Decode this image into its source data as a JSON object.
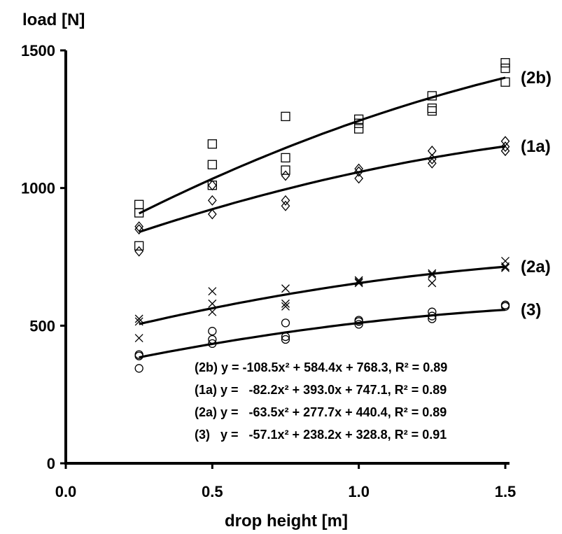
{
  "chart_data": {
    "type": "scatter",
    "ylabel": "load [N]",
    "xlabel": "drop height [m]",
    "xlim": [
      0,
      1.5
    ],
    "ylim": [
      0,
      1500
    ],
    "x_ticks": [
      "0.0",
      "0.5",
      "1.0",
      "1.5"
    ],
    "x_tick_values": [
      0,
      0.5,
      1.0,
      1.5
    ],
    "y_ticks": [
      "0",
      "500",
      "1000",
      "1500"
    ],
    "y_tick_values": [
      0,
      500,
      1000,
      1500
    ],
    "grid": false,
    "series": [
      {
        "name": "(2b)",
        "marker": "square",
        "fit": [
          -108.5,
          584.4,
          768.3
        ],
        "points": [
          [
            0.25,
            940
          ],
          [
            0.25,
            910
          ],
          [
            0.25,
            790
          ],
          [
            0.5,
            1160
          ],
          [
            0.5,
            1085
          ],
          [
            0.5,
            1010
          ],
          [
            0.75,
            1260
          ],
          [
            0.75,
            1110
          ],
          [
            0.75,
            1065
          ],
          [
            1.0,
            1250
          ],
          [
            1.0,
            1235
          ],
          [
            1.0,
            1215
          ],
          [
            1.25,
            1335
          ],
          [
            1.25,
            1290
          ],
          [
            1.25,
            1280
          ],
          [
            1.5,
            1455
          ],
          [
            1.5,
            1435
          ],
          [
            1.5,
            1385
          ]
        ]
      },
      {
        "name": "(1a)",
        "marker": "diamond",
        "fit": [
          -82.2,
          393.0,
          747.1
        ],
        "points": [
          [
            0.25,
            860
          ],
          [
            0.25,
            850
          ],
          [
            0.25,
            770
          ],
          [
            0.5,
            1010
          ],
          [
            0.5,
            955
          ],
          [
            0.5,
            905
          ],
          [
            0.75,
            1045
          ],
          [
            0.75,
            955
          ],
          [
            0.75,
            935
          ],
          [
            1.0,
            1070
          ],
          [
            1.0,
            1060
          ],
          [
            1.0,
            1035
          ],
          [
            1.25,
            1135
          ],
          [
            1.25,
            1105
          ],
          [
            1.25,
            1090
          ],
          [
            1.5,
            1170
          ],
          [
            1.5,
            1150
          ],
          [
            1.5,
            1135
          ]
        ]
      },
      {
        "name": "(2a)",
        "marker": "cross",
        "fit": [
          -63.5,
          277.7,
          440.4
        ],
        "points": [
          [
            0.25,
            525
          ],
          [
            0.25,
            515
          ],
          [
            0.25,
            455
          ],
          [
            0.5,
            625
          ],
          [
            0.5,
            580
          ],
          [
            0.5,
            550
          ],
          [
            0.75,
            635
          ],
          [
            0.75,
            580
          ],
          [
            0.75,
            570
          ],
          [
            1.0,
            665
          ],
          [
            1.0,
            660
          ],
          [
            1.0,
            655
          ],
          [
            1.25,
            690
          ],
          [
            1.25,
            685
          ],
          [
            1.25,
            655
          ],
          [
            1.5,
            735
          ],
          [
            1.5,
            715
          ],
          [
            1.5,
            710
          ]
        ]
      },
      {
        "name": "(3)",
        "marker": "circle",
        "fit": [
          -57.1,
          238.2,
          328.8
        ],
        "points": [
          [
            0.25,
            395
          ],
          [
            0.25,
            390
          ],
          [
            0.25,
            345
          ],
          [
            0.5,
            480
          ],
          [
            0.5,
            450
          ],
          [
            0.5,
            435
          ],
          [
            0.75,
            510
          ],
          [
            0.75,
            460
          ],
          [
            0.75,
            450
          ],
          [
            1.0,
            520
          ],
          [
            1.0,
            515
          ],
          [
            1.0,
            505
          ],
          [
            1.25,
            550
          ],
          [
            1.25,
            535
          ],
          [
            1.25,
            525
          ],
          [
            1.5,
            575
          ],
          [
            1.5,
            575
          ],
          [
            1.5,
            570
          ]
        ]
      }
    ],
    "equations": [
      "(2b) y = -108.5x² + 584.4x + 768.3, R² = 0.89",
      "(1a) y =   -82.2x² + 393.0x + 747.1, R² = 0.89",
      "(2a) y =   -63.5x² + 277.7x + 440.4, R² = 0.89",
      "(3)   y =   -57.1x² + 238.2x + 328.8, R² = 0.91"
    ]
  }
}
